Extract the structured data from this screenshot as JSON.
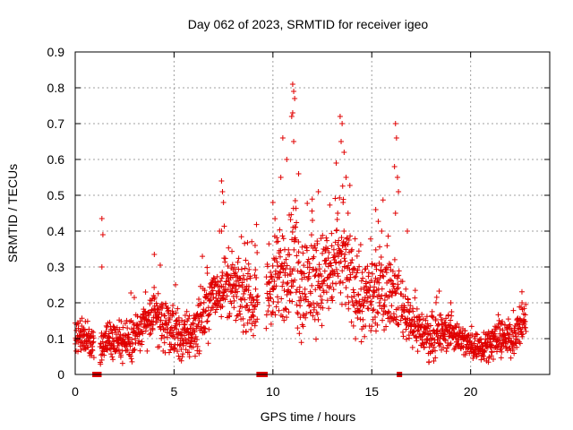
{
  "chart_data": {
    "type": "scatter",
    "title": "Day 062 of 2023, SRMTID for receiver igeo",
    "xlabel": "GPS time / hours",
    "ylabel": "SRMTID / TECUs",
    "xlim": [
      0,
      24
    ],
    "ylim": [
      0,
      0.9
    ],
    "grid": true,
    "marker": "+",
    "color": "#e00000",
    "x_ticks": [
      0,
      5,
      10,
      15,
      20
    ],
    "y_ticks": [
      0,
      0.1,
      0.2,
      0.3,
      0.4,
      0.5,
      0.6,
      0.7,
      0.8,
      0.9
    ],
    "x_tick_labels": [
      "0",
      "5",
      "10",
      "15",
      "20"
    ],
    "y_tick_labels": [
      "0",
      "0.1",
      "0.2",
      "0.3",
      "0.4",
      "0.5",
      "0.6",
      "0.7",
      "0.8",
      "0.9"
    ],
    "zero_value_marks_x": [
      1.0,
      1.1,
      1.2,
      9.3,
      9.45,
      9.6,
      16.4
    ],
    "profile": [
      [
        0.0,
        0.1
      ],
      [
        0.5,
        0.1
      ],
      [
        0.9,
        0.08
      ],
      [
        1.2,
        0.07
      ],
      [
        1.6,
        0.1
      ],
      [
        2.0,
        0.09
      ],
      [
        2.5,
        0.09
      ],
      [
        3.0,
        0.11
      ],
      [
        3.5,
        0.13
      ],
      [
        4.0,
        0.18
      ],
      [
        4.5,
        0.13
      ],
      [
        5.0,
        0.11
      ],
      [
        5.5,
        0.1
      ],
      [
        6.0,
        0.12
      ],
      [
        6.5,
        0.17
      ],
      [
        7.0,
        0.22
      ],
      [
        7.5,
        0.25
      ],
      [
        8.0,
        0.24
      ],
      [
        8.5,
        0.22
      ],
      [
        9.0,
        0.2
      ],
      [
        9.5,
        0.21
      ],
      [
        10.0,
        0.24
      ],
      [
        10.5,
        0.28
      ],
      [
        11.0,
        0.32
      ],
      [
        11.5,
        0.24
      ],
      [
        12.0,
        0.26
      ],
      [
        12.5,
        0.27
      ],
      [
        13.0,
        0.29
      ],
      [
        13.5,
        0.33
      ],
      [
        14.0,
        0.26
      ],
      [
        14.5,
        0.21
      ],
      [
        15.0,
        0.2
      ],
      [
        15.5,
        0.24
      ],
      [
        16.0,
        0.24
      ],
      [
        16.5,
        0.19
      ],
      [
        17.0,
        0.15
      ],
      [
        17.5,
        0.12
      ],
      [
        18.0,
        0.1
      ],
      [
        18.5,
        0.11
      ],
      [
        19.0,
        0.12
      ],
      [
        19.5,
        0.1
      ],
      [
        20.0,
        0.08
      ],
      [
        20.5,
        0.08
      ],
      [
        21.0,
        0.09
      ],
      [
        21.5,
        0.1
      ],
      [
        22.0,
        0.1
      ],
      [
        22.5,
        0.13
      ],
      [
        22.8,
        0.15
      ]
    ],
    "spread": [
      [
        0.0,
        0.03
      ],
      [
        4.0,
        0.05
      ],
      [
        6.5,
        0.06
      ],
      [
        9.5,
        0.07
      ],
      [
        11.0,
        0.12
      ],
      [
        13.5,
        0.1
      ],
      [
        15.5,
        0.08
      ],
      [
        17.0,
        0.05
      ],
      [
        20.0,
        0.03
      ],
      [
        22.8,
        0.04
      ]
    ],
    "gaps": [
      [
        0.95,
        1.25
      ],
      [
        9.25,
        9.65
      ],
      [
        16.38,
        16.45
      ]
    ],
    "peaks": [
      {
        "x": 1.35,
        "y": 0.435
      },
      {
        "x": 1.4,
        "y": 0.39
      },
      {
        "x": 1.35,
        "y": 0.3
      },
      {
        "x": 4.0,
        "y": 0.335
      },
      {
        "x": 4.3,
        "y": 0.305
      },
      {
        "x": 7.4,
        "y": 0.54
      },
      {
        "x": 7.45,
        "y": 0.51
      },
      {
        "x": 7.5,
        "y": 0.48
      },
      {
        "x": 7.4,
        "y": 0.4
      },
      {
        "x": 9.1,
        "y": 0.36
      },
      {
        "x": 9.2,
        "y": 0.34
      },
      {
        "x": 10.0,
        "y": 0.48
      },
      {
        "x": 10.4,
        "y": 0.55
      },
      {
        "x": 11.0,
        "y": 0.81
      },
      {
        "x": 11.05,
        "y": 0.79
      },
      {
        "x": 11.1,
        "y": 0.77
      },
      {
        "x": 11.0,
        "y": 0.73
      },
      {
        "x": 10.95,
        "y": 0.72
      },
      {
        "x": 11.05,
        "y": 0.65
      },
      {
        "x": 10.5,
        "y": 0.66
      },
      {
        "x": 10.7,
        "y": 0.6
      },
      {
        "x": 11.3,
        "y": 0.56
      },
      {
        "x": 12.0,
        "y": 0.43
      },
      {
        "x": 12.3,
        "y": 0.51
      },
      {
        "x": 13.2,
        "y": 0.59
      },
      {
        "x": 13.4,
        "y": 0.72
      },
      {
        "x": 13.5,
        "y": 0.7
      },
      {
        "x": 13.45,
        "y": 0.65
      },
      {
        "x": 13.6,
        "y": 0.62
      },
      {
        "x": 13.7,
        "y": 0.55
      },
      {
        "x": 13.55,
        "y": 0.48
      },
      {
        "x": 13.8,
        "y": 0.45
      },
      {
        "x": 15.2,
        "y": 0.46
      },
      {
        "x": 15.5,
        "y": 0.4
      },
      {
        "x": 16.2,
        "y": 0.7
      },
      {
        "x": 16.25,
        "y": 0.66
      },
      {
        "x": 16.15,
        "y": 0.58
      },
      {
        "x": 16.3,
        "y": 0.55
      },
      {
        "x": 16.2,
        "y": 0.45
      },
      {
        "x": 16.35,
        "y": 0.51
      },
      {
        "x": 16.8,
        "y": 0.4
      },
      {
        "x": 19.0,
        "y": 0.2
      },
      {
        "x": 22.6,
        "y": 0.2
      }
    ]
  }
}
